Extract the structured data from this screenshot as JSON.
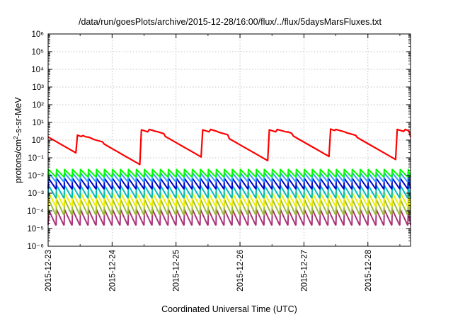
{
  "chart_data": {
    "type": "line",
    "title": "/data/run/goesPlots/archive/2015-12-28/16:00/flux/../flux/5daysMarsFluxes.txt",
    "xlabel": "Coordinated Universal Time (UTC)",
    "ylabel": "protons/cm²-s-sr-MeV",
    "y_scale": "log",
    "ylim": [
      1e-06,
      1000000.0
    ],
    "xlim": [
      "2015-12-23",
      "2015-12-28T16:00"
    ],
    "x_ticks": [
      "2015-12-23",
      "2015-12-24",
      "2015-12-25",
      "2015-12-26",
      "2015-12-27",
      "2015-12-28"
    ],
    "y_ticks": [
      "10⁻⁶",
      "10⁻⁵",
      "10⁻⁴",
      "10⁻³",
      "10⁻²",
      "10⁻¹",
      "10⁰",
      "10¹",
      "10²",
      "10³",
      "10⁴",
      "10⁵",
      "10⁶"
    ],
    "grid": true,
    "legend": "none",
    "sawtooth_period_hours": 3,
    "series": [
      {
        "color": "#ff0000",
        "period_hours": 3,
        "peak_times": [
          "2015-12-23T00:00",
          "2015-12-23T11:00",
          "2015-12-23T13:00",
          "2015-12-23T15:00",
          "2015-12-23T17:00",
          "2015-12-23T21:00",
          "2015-12-24T11:00",
          "2015-12-24T14:00",
          "2015-12-24T17:00",
          "2015-12-24T20:00",
          "2015-12-25T10:00",
          "2015-12-25T13:00",
          "2015-12-25T16:00",
          "2015-12-25T20:00",
          "2015-12-26T11:00",
          "2015-12-26T14:00",
          "2015-12-26T18:00",
          "2015-12-26T20:00",
          "2015-12-27T10:00",
          "2015-12-27T12:00",
          "2015-12-27T16:00",
          "2015-12-27T20:00",
          "2015-12-28T11:00",
          "2015-12-28T14:00",
          "2015-12-28T16:00"
        ],
        "peak_values": [
          1.5,
          1.9,
          1.8,
          1.5,
          1.1,
          0.6,
          3.8,
          4.0,
          3.0,
          1.6,
          3.8,
          4.0,
          2.8,
          1.2,
          3.8,
          4.0,
          2.9,
          1.7,
          4.2,
          4.0,
          2.6,
          1.4,
          4.0,
          4.0,
          1.5
        ]
      },
      {
        "color": "#00ff00",
        "min": 0.0085,
        "max": 0.022,
        "period_hours": 3
      },
      {
        "color": "#3399ff",
        "min": 0.0045,
        "max": 0.014,
        "period_hours": 3
      },
      {
        "color": "#0000cc",
        "min": 0.0018,
        "max": 0.007,
        "period_hours": 3
      },
      {
        "color": "#00bbbb",
        "min": 0.00055,
        "max": 0.0028,
        "period_hours": 3
      },
      {
        "color": "#eeee00",
        "min": 0.00018,
        "max": 0.0011,
        "period_hours": 3
      },
      {
        "color": "#99bb33",
        "min": 6e-05,
        "max": 0.00045,
        "period_hours": 3
      },
      {
        "color": "#aa3377",
        "min": 1.6e-05,
        "max": 0.00012,
        "period_hours": 3
      }
    ]
  }
}
